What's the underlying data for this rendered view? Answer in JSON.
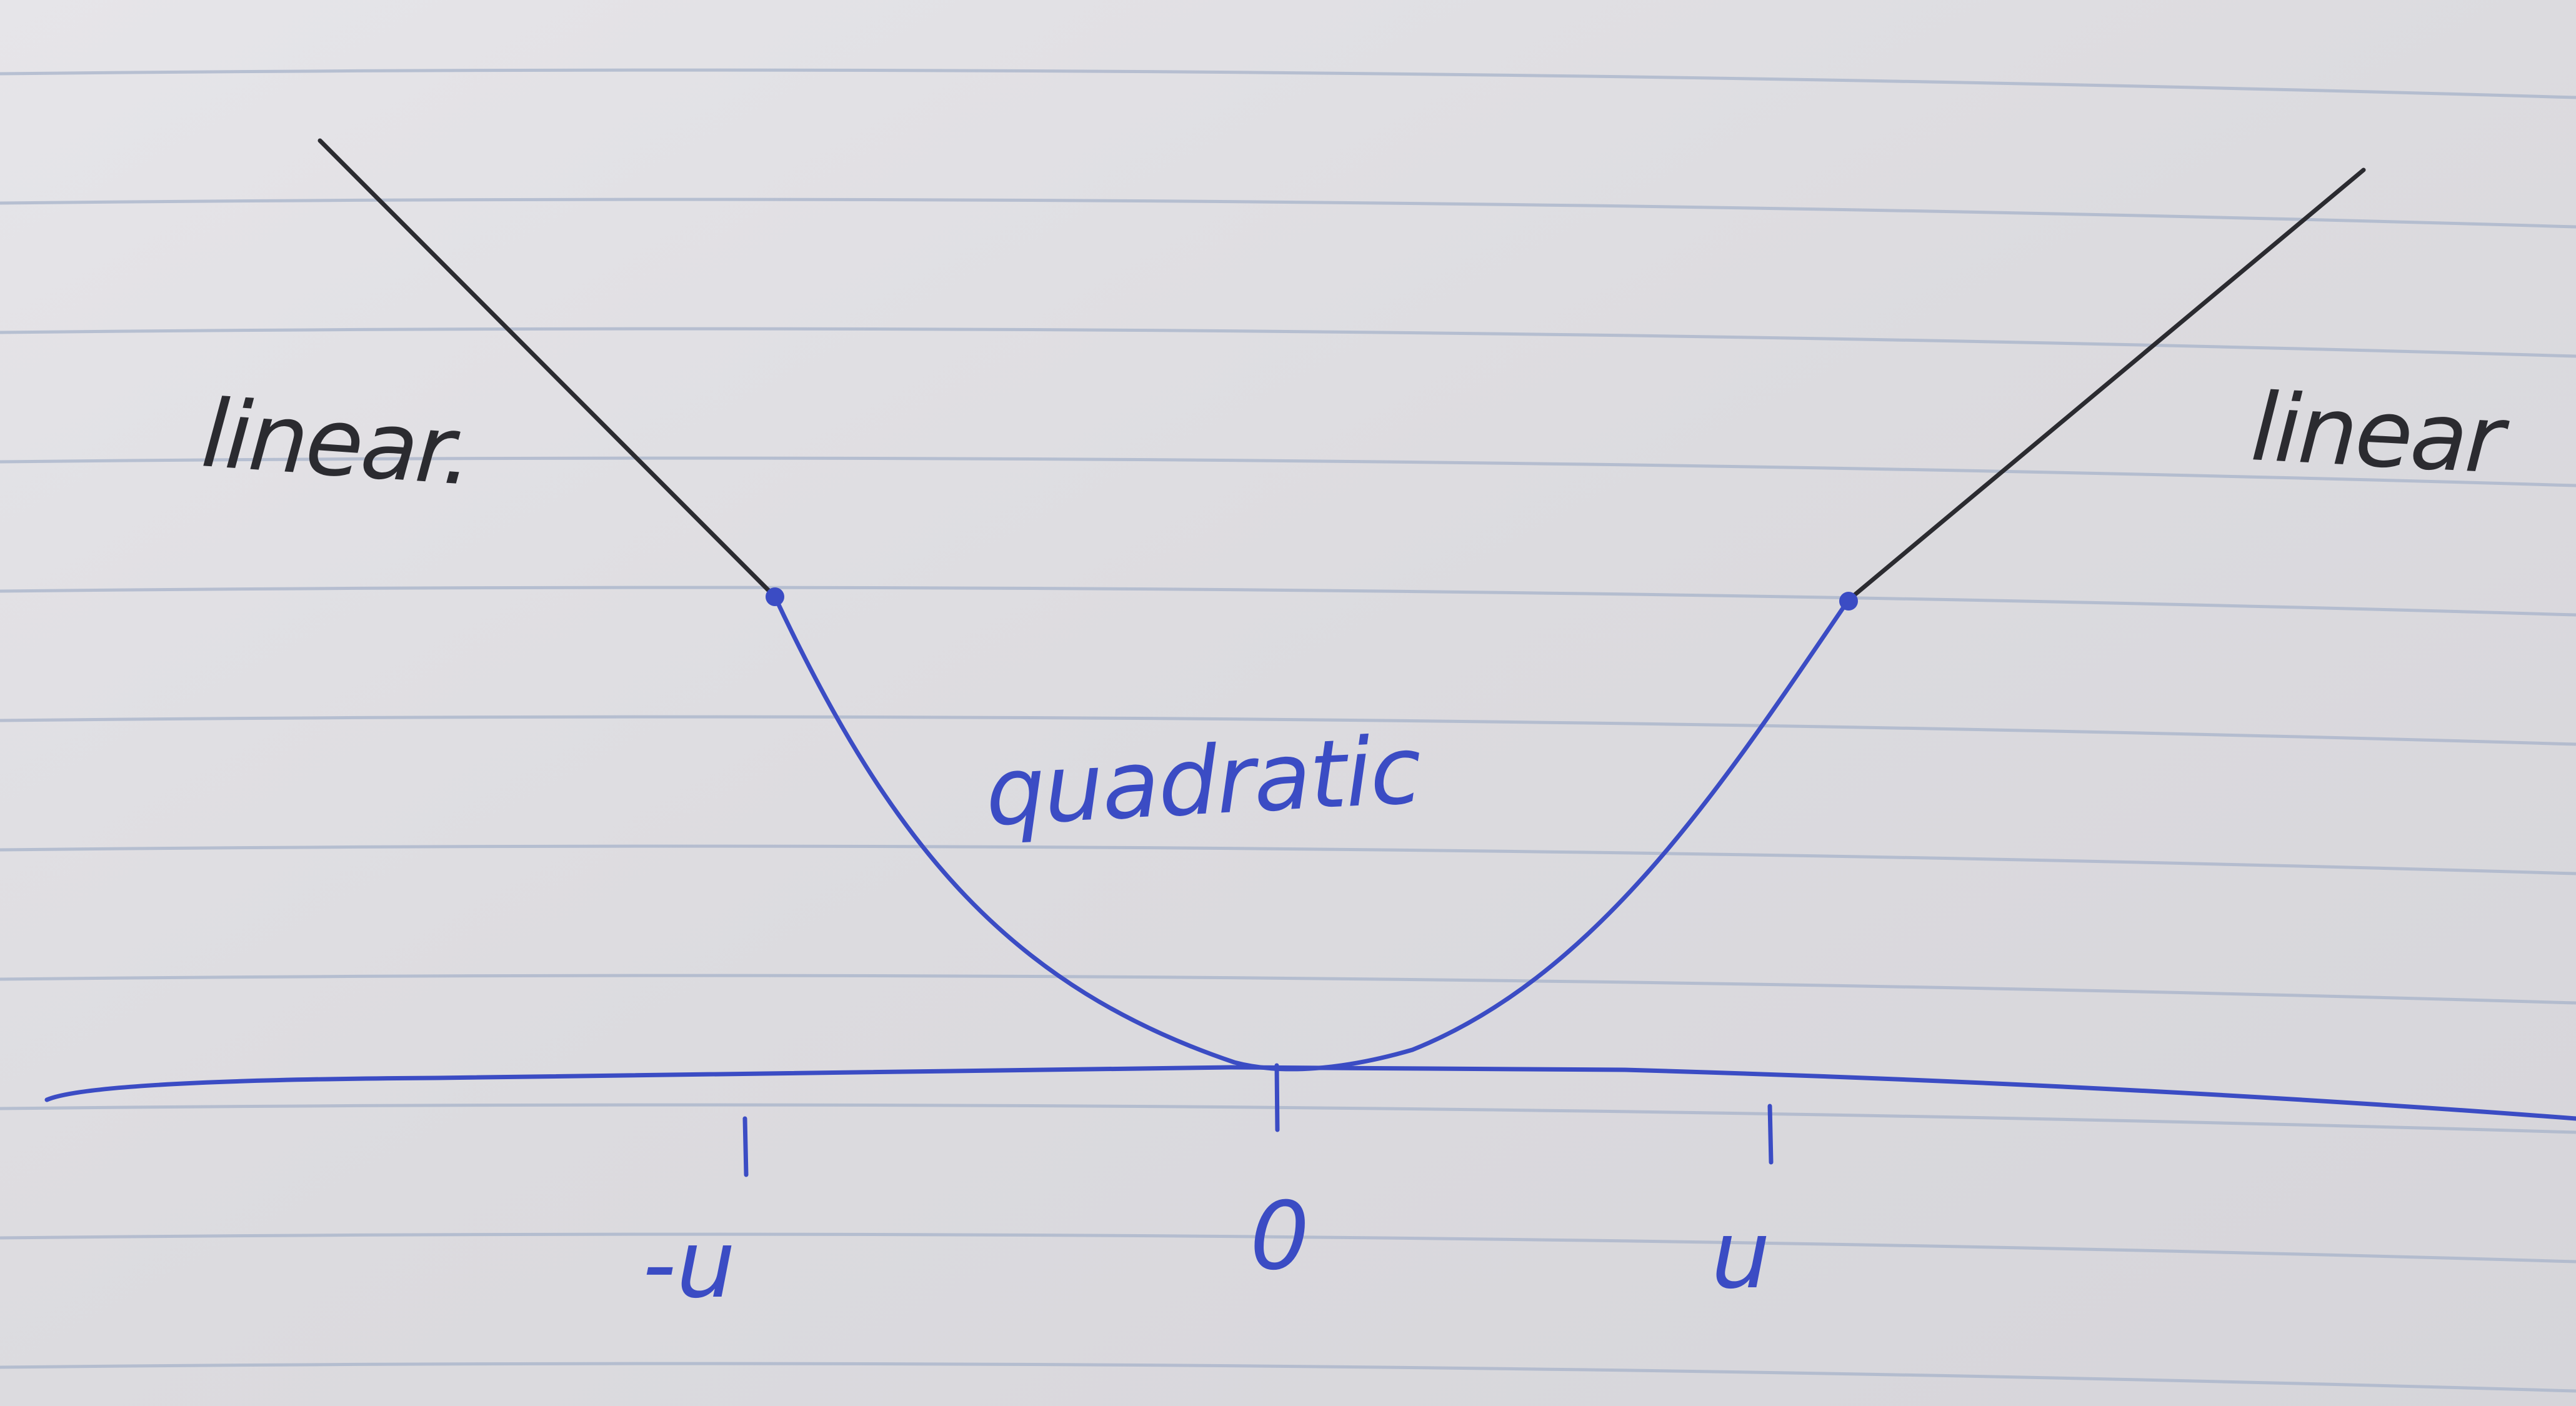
{
  "diagram": {
    "labels": {
      "left_segment": "linear.",
      "right_segment": "linear",
      "middle_segment": "quadratic"
    },
    "axis": {
      "ticks": [
        "-u",
        "0",
        "u"
      ]
    },
    "colors": {
      "paper": "#e2e1e5",
      "ruled_line": "#a7b3c9",
      "ink_black": "#2b2b30",
      "ink_blue": "#3b4cc4"
    }
  }
}
